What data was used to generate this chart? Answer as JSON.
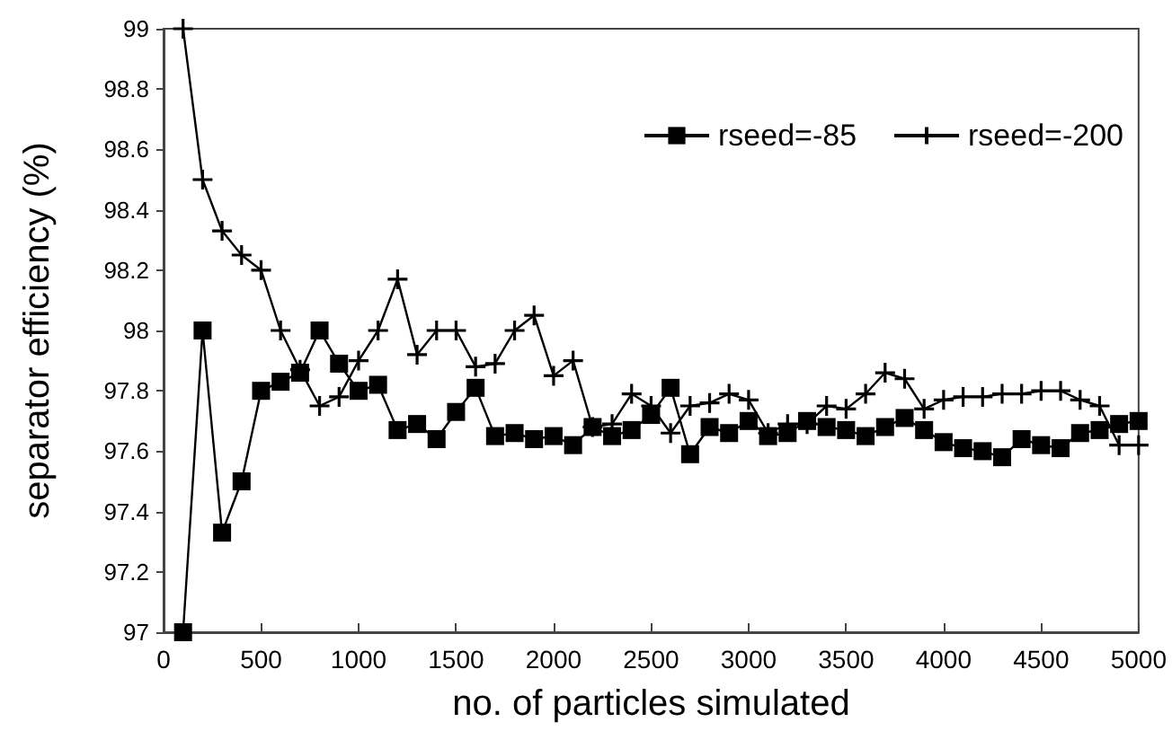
{
  "chart_data": {
    "type": "line",
    "xlabel": "no. of particles simulated",
    "ylabel": "separator efficiency (%)",
    "xlim": [
      0,
      5000
    ],
    "xticks": [
      0,
      500,
      1000,
      1500,
      2000,
      2500,
      3000,
      3500,
      4000,
      4500,
      5000
    ],
    "ylim": [
      97,
      99
    ],
    "yticks": [
      97,
      97.2,
      97.4,
      97.6,
      97.8,
      98,
      98.2,
      98.4,
      98.6,
      98.8,
      99
    ],
    "grid": false,
    "legend": "top right",
    "x": [
      100,
      200,
      300,
      400,
      500,
      600,
      700,
      800,
      900,
      1000,
      1100,
      1200,
      1300,
      1400,
      1500,
      1600,
      1700,
      1800,
      1900,
      2000,
      2100,
      2200,
      2300,
      2400,
      2500,
      2600,
      2700,
      2800,
      2900,
      3000,
      3100,
      3200,
      3300,
      3400,
      3500,
      3600,
      3700,
      3800,
      3900,
      4000,
      4100,
      4200,
      4300,
      4400,
      4500,
      4600,
      4700,
      4800,
      4900,
      5000
    ],
    "series": [
      {
        "name": "rseed=-85",
        "color": "#000000",
        "marker": "square",
        "values": [
          97.0,
          98.0,
          97.33,
          97.5,
          97.8,
          97.83,
          97.86,
          98.0,
          97.89,
          97.8,
          97.82,
          97.67,
          97.69,
          97.64,
          97.73,
          97.81,
          97.65,
          97.66,
          97.64,
          97.65,
          97.62,
          97.68,
          97.65,
          97.67,
          97.72,
          97.81,
          97.59,
          97.68,
          97.66,
          97.7,
          97.65,
          97.66,
          97.7,
          97.68,
          97.67,
          97.65,
          97.68,
          97.71,
          97.67,
          97.63,
          97.61,
          97.6,
          97.58,
          97.64,
          97.62,
          97.61,
          97.66,
          97.67,
          97.69,
          97.7
        ]
      },
      {
        "name": "rseed=-200",
        "color": "#000000",
        "marker": "cross",
        "values": [
          99.0,
          98.5,
          98.33,
          98.25,
          98.2,
          98.0,
          97.87,
          97.75,
          97.78,
          97.9,
          98.0,
          98.17,
          97.92,
          98.0,
          98.0,
          97.88,
          97.89,
          98.0,
          98.05,
          97.85,
          97.9,
          97.68,
          97.69,
          97.79,
          97.75,
          97.66,
          97.75,
          97.76,
          97.79,
          97.77,
          97.66,
          97.69,
          97.69,
          97.75,
          97.74,
          97.79,
          97.86,
          97.84,
          97.74,
          97.77,
          97.78,
          97.78,
          97.79,
          97.79,
          97.8,
          97.8,
          97.77,
          97.75,
          97.62,
          97.62
        ]
      }
    ]
  }
}
